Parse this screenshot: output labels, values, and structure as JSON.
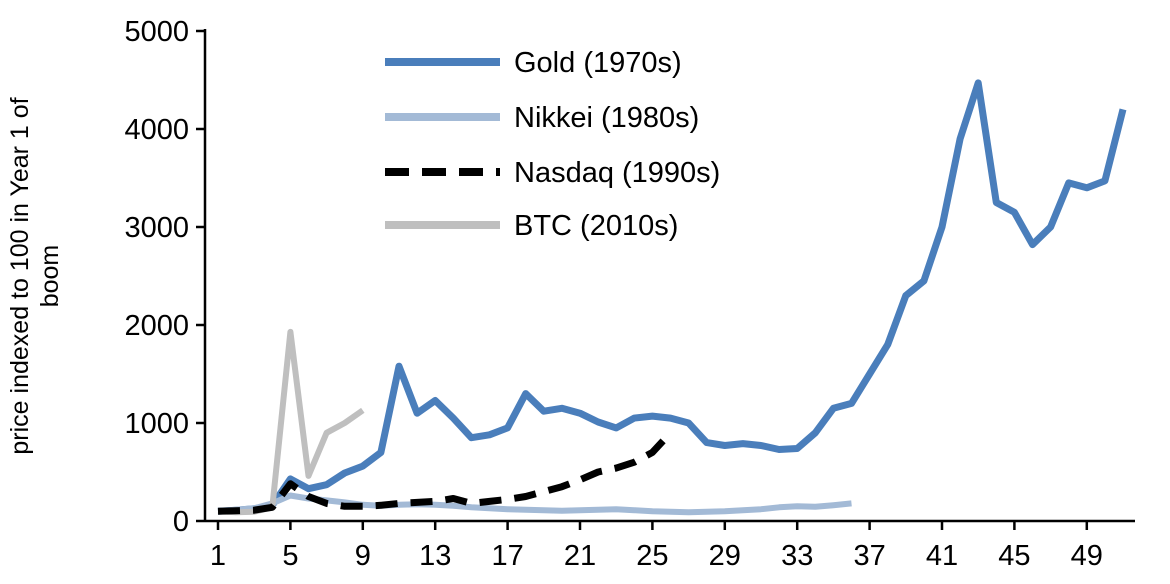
{
  "chart_data": {
    "type": "line",
    "title": "",
    "xlabel": "",
    "ylabel_lines": [
      "price indexed to 100 in Year 1 of",
      "boom"
    ],
    "ylim": [
      0,
      5000
    ],
    "y_ticks": [
      0,
      1000,
      2000,
      3000,
      4000,
      5000
    ],
    "x_ticks": [
      1,
      5,
      9,
      13,
      17,
      21,
      25,
      29,
      33,
      37,
      41,
      45,
      49
    ],
    "x_start": 1,
    "grid": false,
    "legend_position": "upper-left-inside",
    "axis_color": "#000000",
    "series": [
      {
        "name": "Gold (1970s)",
        "color": "#4A7EBB",
        "dash": null,
        "width": 7,
        "values": [
          100,
          110,
          125,
          160,
          430,
          330,
          370,
          490,
          560,
          700,
          1580,
          1100,
          1230,
          1050,
          850,
          880,
          950,
          1300,
          1120,
          1150,
          1100,
          1010,
          950,
          1050,
          1070,
          1050,
          1000,
          800,
          770,
          790,
          770,
          730,
          740,
          900,
          1150,
          1200,
          1500,
          1800,
          2300,
          2450,
          3000,
          3900,
          4470,
          3250,
          3150,
          2820,
          3000,
          3450,
          3400,
          3470,
          4200
        ]
      },
      {
        "name": "Nikkei (1980s)",
        "color": "#A3BAD6",
        "dash": null,
        "width": 6,
        "values": [
          100,
          115,
          130,
          180,
          260,
          230,
          210,
          190,
          165,
          155,
          165,
          170,
          165,
          155,
          140,
          130,
          120,
          115,
          110,
          105,
          110,
          115,
          120,
          110,
          100,
          95,
          90,
          95,
          100,
          110,
          120,
          140,
          150,
          145,
          160,
          180
        ]
      },
      {
        "name": "Nasdaq (1990s)",
        "color": "#000000",
        "dash": "22 13",
        "width": 7,
        "values": [
          100,
          105,
          110,
          140,
          380,
          250,
          180,
          150,
          150,
          160,
          180,
          190,
          200,
          230,
          180,
          200,
          220,
          250,
          300,
          350,
          420,
          500,
          540,
          600,
          700,
          900
        ]
      },
      {
        "name": "BTC (2010s)",
        "color": "#BFBFBF",
        "dash": null,
        "width": 6,
        "values": [
          100,
          90,
          95,
          140,
          1930,
          460,
          900,
          1000,
          1130
        ]
      }
    ]
  }
}
